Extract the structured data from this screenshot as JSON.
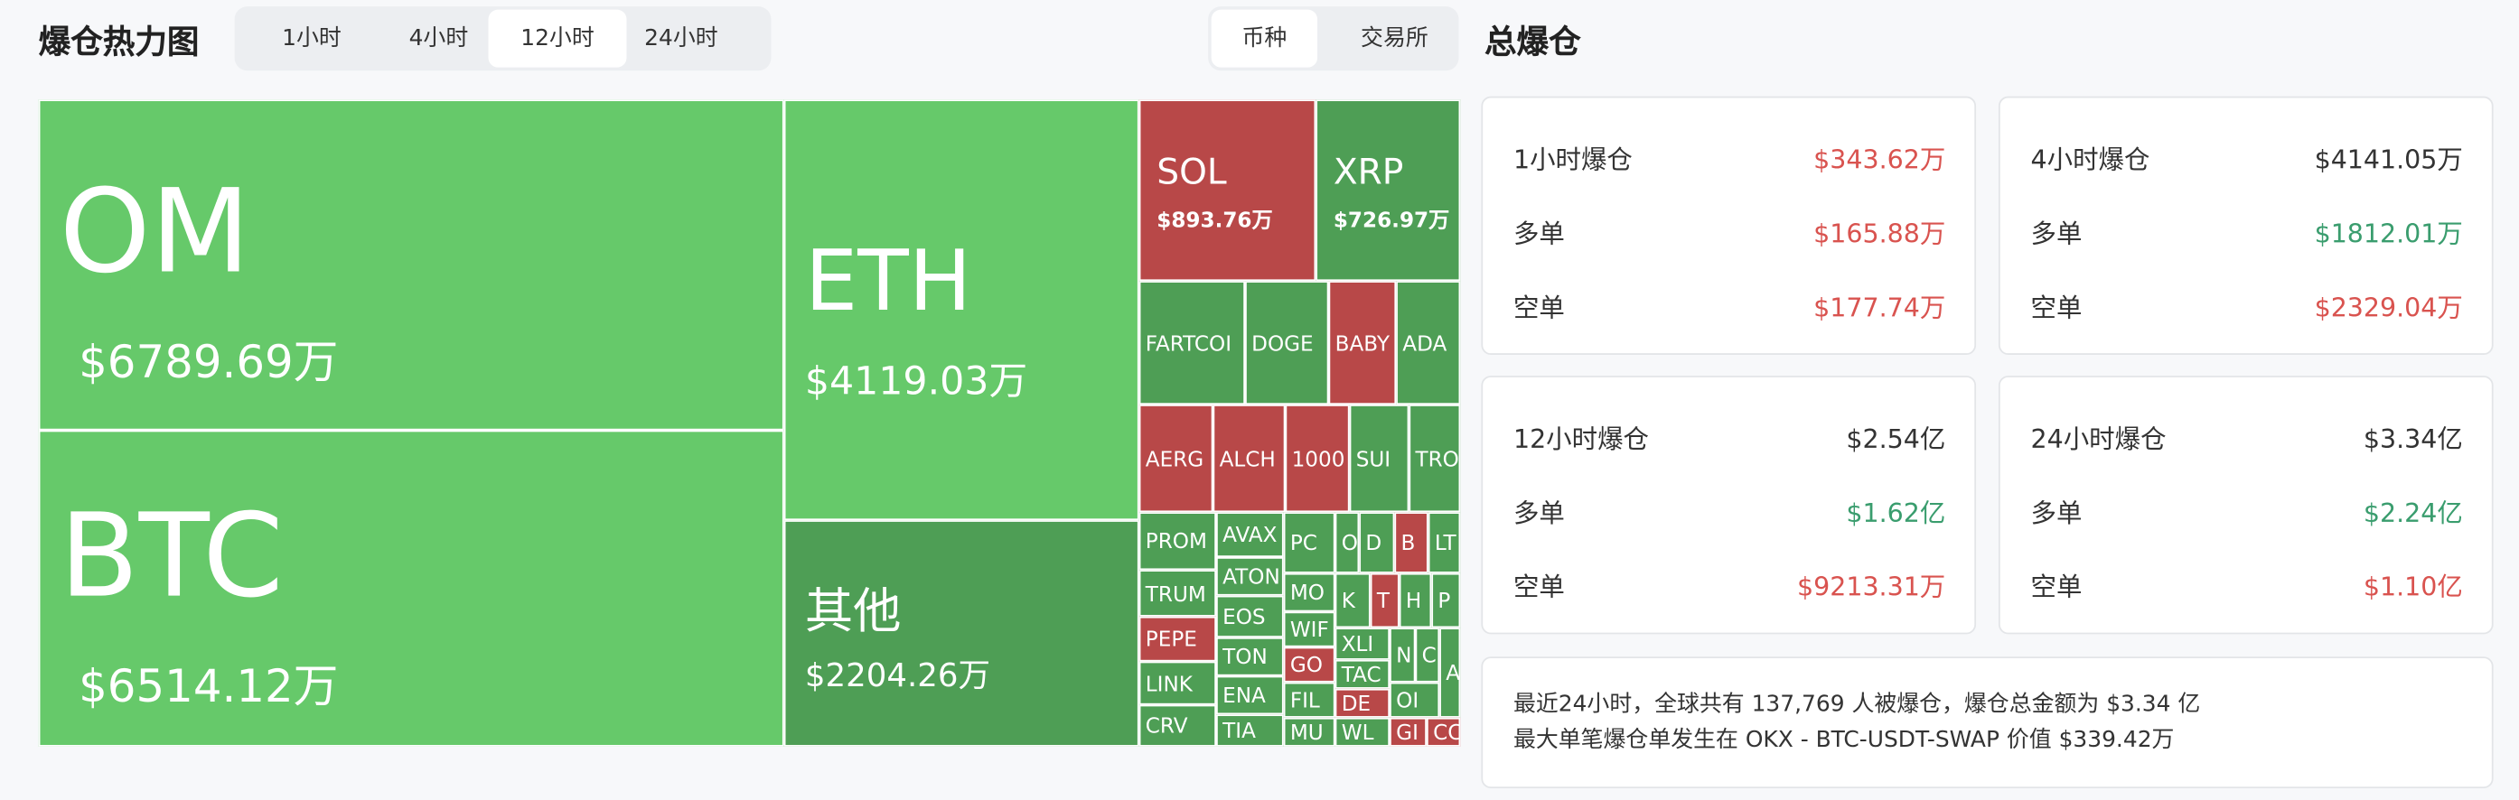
{
  "header": {
    "title": "爆仓热力图",
    "time_tabs": [
      "1小时",
      "4小时",
      "12小时",
      "24小时"
    ],
    "view_tabs": [
      "币种",
      "交易所"
    ]
  },
  "heatmap": {
    "tiles": [
      {
        "label": "OM",
        "value": "$6789.69万",
        "color": "#66c96a"
      },
      {
        "label": "BTC",
        "value": "$6514.12万",
        "color": "#66c96a"
      },
      {
        "label": "ETH",
        "value": "$4119.03万",
        "color": "#66c96a"
      },
      {
        "label": "其他",
        "value": "$2204.26万",
        "color": "#4e9e55"
      },
      {
        "label": "SOL",
        "value": "$893.76万",
        "color": "#b84848"
      },
      {
        "label": "XRP",
        "value": "$726.97万",
        "color": "#4e9e55"
      },
      {
        "label": "FARTCOI",
        "color": "#4e9e55"
      },
      {
        "label": "DOGE",
        "color": "#4e9e55"
      },
      {
        "label": "BABY",
        "color": "#b84848"
      },
      {
        "label": "ADA",
        "color": "#4e9e55"
      },
      {
        "label": "AERG",
        "color": "#b84848"
      },
      {
        "label": "ALCH",
        "color": "#b84848"
      },
      {
        "label": "1000",
        "color": "#b84848"
      },
      {
        "label": "SUI",
        "color": "#4e9e55"
      },
      {
        "label": "TRO",
        "color": "#4e9e55"
      },
      {
        "label": "PROM",
        "color": "#4e9e55"
      },
      {
        "label": "TRUM",
        "color": "#4e9e55"
      },
      {
        "label": "PEPE",
        "color": "#b84848"
      },
      {
        "label": "LINK",
        "color": "#4e9e55"
      },
      {
        "label": "CRV",
        "color": "#4e9e55"
      },
      {
        "label": "AVAX",
        "color": "#4e9e55"
      },
      {
        "label": "ATON",
        "color": "#4e9e55"
      },
      {
        "label": "EOS",
        "color": "#4e9e55"
      },
      {
        "label": "TON",
        "color": "#4e9e55"
      },
      {
        "label": "ENA",
        "color": "#4e9e55"
      },
      {
        "label": "TIA",
        "color": "#4e9e55"
      },
      {
        "label": "PC",
        "color": "#4e9e55"
      },
      {
        "label": "MO",
        "color": "#4e9e55"
      },
      {
        "label": "WIF",
        "color": "#4e9e55"
      },
      {
        "label": "GO",
        "color": "#b84848"
      },
      {
        "label": "FIL",
        "color": "#4e9e55"
      },
      {
        "label": "MU",
        "color": "#4e9e55"
      },
      {
        "label": "O",
        "color": "#4e9e55"
      },
      {
        "label": "D",
        "color": "#4e9e55"
      },
      {
        "label": "B",
        "color": "#b84848"
      },
      {
        "label": "LT",
        "color": "#4e9e55"
      },
      {
        "label": "K",
        "color": "#4e9e55"
      },
      {
        "label": "T",
        "color": "#b84848"
      },
      {
        "label": "H",
        "color": "#4e9e55"
      },
      {
        "label": "P",
        "color": "#4e9e55"
      },
      {
        "label": "XLI",
        "color": "#4e9e55"
      },
      {
        "label": "TAC",
        "color": "#4e9e55"
      },
      {
        "label": "DE",
        "color": "#b84848"
      },
      {
        "label": "WL",
        "color": "#4e9e55"
      },
      {
        "label": "N",
        "color": "#4e9e55"
      },
      {
        "label": "C",
        "color": "#4e9e55"
      },
      {
        "label": "OI",
        "color": "#4e9e55"
      },
      {
        "label": "AI",
        "color": "#4e9e55"
      },
      {
        "label": "GI",
        "color": "#b84848"
      },
      {
        "label": "CC",
        "color": "#b84848"
      }
    ]
  },
  "summary": {
    "title": "总爆仓",
    "cards": [
      {
        "title": "1小时爆仓",
        "total": "$343.62万",
        "long_label": "多单",
        "long": "$165.88万",
        "short_label": "空单",
        "short": "$177.74万",
        "total_color": "#d9534f",
        "long_color": "#d9534f",
        "short_color": "#d9534f"
      },
      {
        "title": "4小时爆仓",
        "total": "$4141.05万",
        "long_label": "多单",
        "long": "$1812.01万",
        "short_label": "空单",
        "short": "$2329.04万",
        "total_color": "#333333",
        "long_color": "#3a9d6e",
        "short_color": "#d9534f"
      },
      {
        "title": "12小时爆仓",
        "total": "$2.54亿",
        "long_label": "多单",
        "long": "$1.62亿",
        "short_label": "空单",
        "short": "$9213.31万",
        "total_color": "#333333",
        "long_color": "#3a9d6e",
        "short_color": "#d9534f"
      },
      {
        "title": "24小时爆仓",
        "total": "$3.34亿",
        "long_label": "多单",
        "long": "$2.24亿",
        "short_label": "空单",
        "short": "$1.10亿",
        "total_color": "#333333",
        "long_color": "#3a9d6e",
        "short_color": "#d9534f"
      }
    ]
  },
  "footer": {
    "lines": [
      "最近24小时，全球共有 137,769 人被爆仓，爆仓总金额为 $3.34 亿",
      "最大单笔爆仓单发生在 OKX - BTC-USDT-SWAP 价值 $339.42万"
    ]
  }
}
